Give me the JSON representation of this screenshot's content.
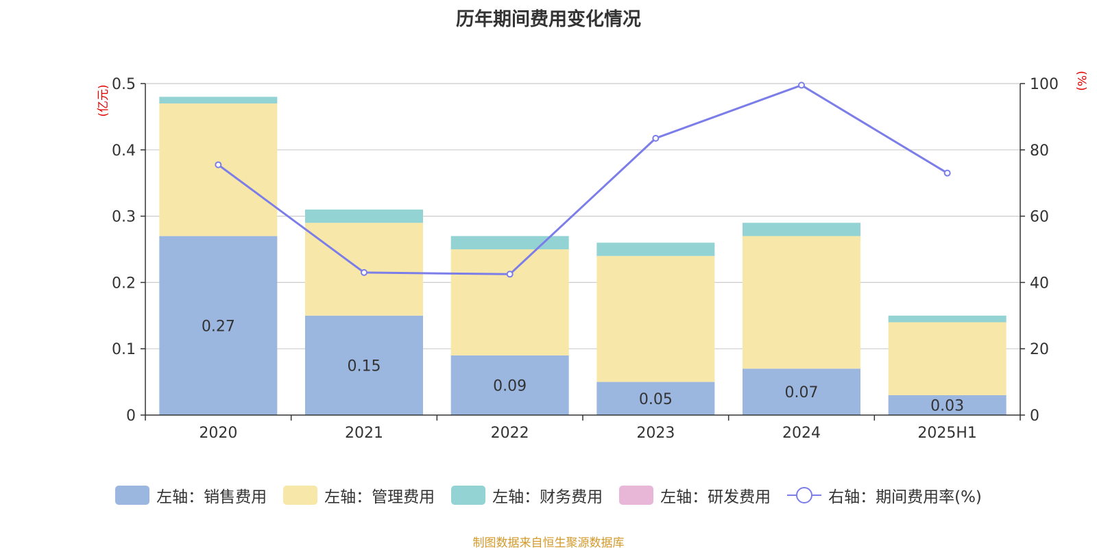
{
  "chart_data": {
    "type": "bar",
    "stacked": true,
    "title": "历年期间费用变化情况",
    "categories": [
      "2020",
      "2021",
      "2022",
      "2023",
      "2024",
      "2025H1"
    ],
    "left_axis": {
      "unit": "(亿元)",
      "ylim": [
        0,
        0.5
      ],
      "ticks": [
        "0",
        "0.1",
        "0.2",
        "0.3",
        "0.4",
        "0.5"
      ],
      "tick_values": [
        0,
        0.1,
        0.2,
        0.3,
        0.4,
        0.5
      ]
    },
    "right_axis": {
      "unit": "(%)",
      "ylim": [
        0,
        100
      ],
      "ticks": [
        "0",
        "20",
        "40",
        "60",
        "80",
        "100"
      ],
      "tick_values": [
        0,
        20,
        40,
        60,
        80,
        100
      ]
    },
    "series": [
      {
        "name": "左轴：销售费用",
        "type": "bar",
        "axis": "left",
        "color": "#9bb7e0",
        "values": [
          0.27,
          0.15,
          0.09,
          0.05,
          0.07,
          0.03
        ],
        "labels": [
          "0.27",
          "0.15",
          "0.09",
          "0.05",
          "0.07",
          "0.03"
        ]
      },
      {
        "name": "左轴：管理费用",
        "type": "bar",
        "axis": "left",
        "color": "#f7e7a9",
        "values": [
          0.2,
          0.14,
          0.16,
          0.19,
          0.2,
          0.11
        ]
      },
      {
        "name": "左轴：财务费用",
        "type": "bar",
        "axis": "left",
        "color": "#94d3d3",
        "values": [
          0.01,
          0.02,
          0.02,
          0.02,
          0.02,
          0.01
        ]
      },
      {
        "name": "左轴：研发费用",
        "type": "bar",
        "axis": "left",
        "color": "#e8b7d8",
        "values": [
          0,
          0,
          0,
          0,
          0,
          0
        ]
      },
      {
        "name": "右轴：期间费用率(%)",
        "type": "line",
        "axis": "right",
        "color": "#7b7de8",
        "values": [
          75.5,
          43.0,
          42.5,
          83.5,
          99.5,
          73.0
        ]
      }
    ],
    "legend_position": "bottom",
    "grid": true
  },
  "source": "制图数据来自恒生聚源数据库"
}
